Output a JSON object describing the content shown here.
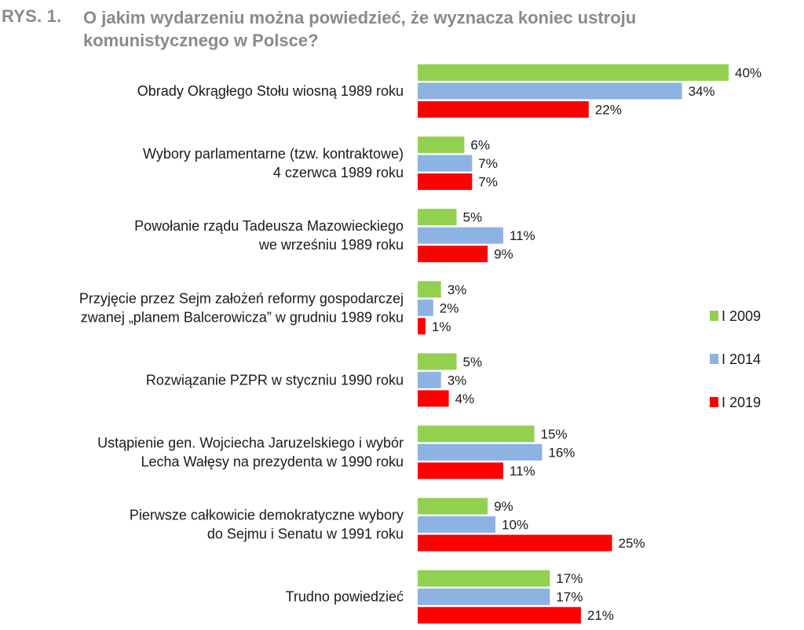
{
  "header": {
    "figure_label": "RYS. 1.",
    "title_line1": "O jakim wydarzeniu można powiedzieć, że wyznacza koniec ustroju",
    "title_line2": "komunistycznego w Polsce?"
  },
  "chart_data": {
    "type": "bar",
    "orientation": "horizontal",
    "title": "O jakim wydarzeniu można powiedzieć, że wyznacza koniec ustroju komunistycznego w Polsce?",
    "value_suffix": "%",
    "categories": [
      [
        "Obrady Okrągłego Stołu wiosną 1989 roku"
      ],
      [
        "Wybory parlamentarne (tzw. kontraktowe)",
        "4 czerwca 1989 roku"
      ],
      [
        "Powołanie rządu Tadeusza Mazowieckiego",
        "we wrześniu 1989 roku"
      ],
      [
        "Przyjęcie przez Sejm założeń reformy gospodarczej",
        "zwanej „planem Balcerowicza” w grudniu 1989 roku"
      ],
      [
        "Rozwiązanie PZPR w styczniu 1990 roku"
      ],
      [
        "Ustąpienie gen. Wojciecha Jaruzelskiego i wybór",
        "Lecha Wałęsy na prezydenta w 1990 roku"
      ],
      [
        "Pierwsze całkowicie demokratyczne wybory",
        "do Sejmu i Senatu w 1991 roku"
      ],
      [
        "Trudno powiedzieć"
      ]
    ],
    "series": [
      {
        "name": "I 2009",
        "color": "#92d050",
        "values": [
          40,
          6,
          5,
          3,
          5,
          15,
          9,
          17
        ]
      },
      {
        "name": "I 2014",
        "color": "#8db3e2",
        "values": [
          34,
          7,
          11,
          2,
          3,
          16,
          10,
          17
        ]
      },
      {
        "name": "I 2019",
        "color": "#ff0000",
        "values": [
          22,
          7,
          9,
          1,
          4,
          11,
          25,
          21
        ]
      }
    ],
    "xlim": [
      0,
      40
    ],
    "legend_position": "right",
    "grid": false
  }
}
